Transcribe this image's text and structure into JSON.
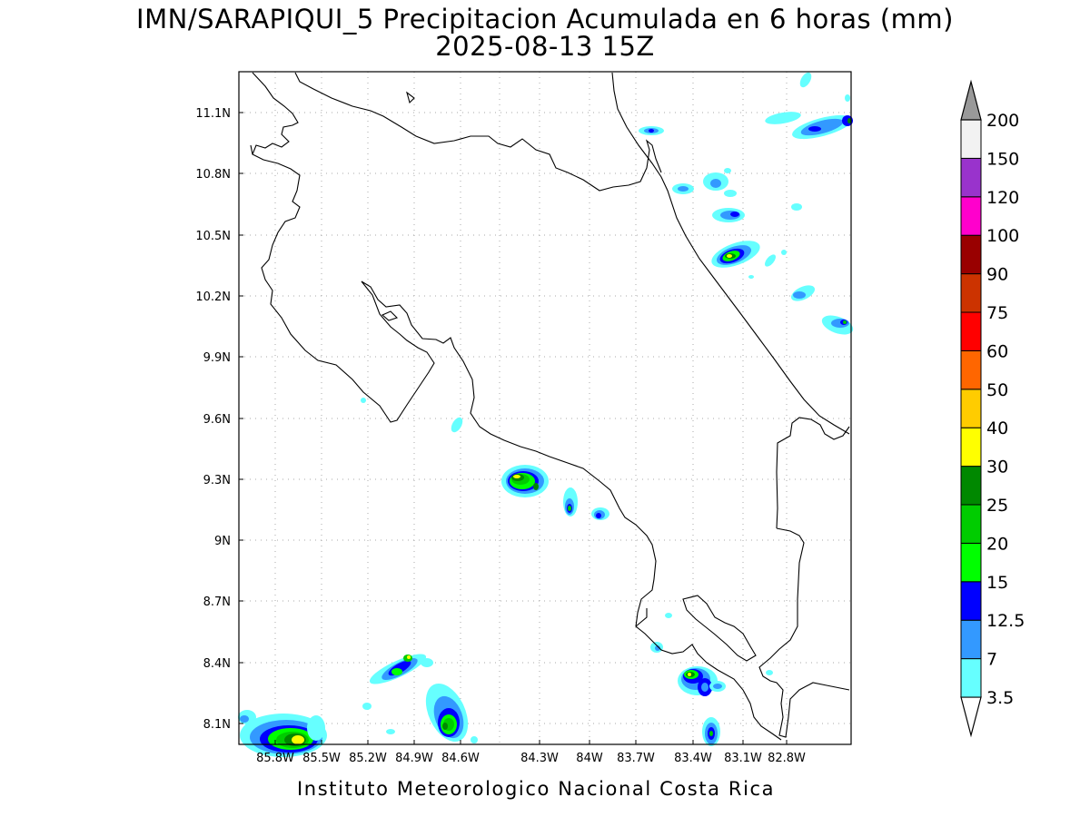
{
  "title": {
    "line1": "IMN/SARAPIQUI_5 Precipitacion Acumulada en 6 horas (mm)",
    "line2": "2025-08-13 15Z"
  },
  "footer": "Instituto Meteorologico Nacional Costa Rica",
  "map": {
    "lon_range": [
      -86.05,
      -82.65
    ],
    "lat_range": [
      8.0,
      11.3
    ],
    "x_ticks": [
      "85.8W",
      "85.5W",
      "85.2W",
      "84.9W",
      "84.6W",
      "84.3W",
      "84W",
      "83.7W",
      "83.4W",
      "83.1W",
      "82.8W"
    ],
    "y_ticks": [
      "11.1N",
      "10.8N",
      "10.5N",
      "10.2N",
      "9.9N",
      "9.6N",
      "9.3N",
      "9N",
      "8.7N",
      "8.4N",
      "8.1N"
    ],
    "grid": "dotted"
  },
  "colorbar": {
    "labels": [
      "3.5",
      "7",
      "12.5",
      "15",
      "20",
      "25",
      "30",
      "40",
      "50",
      "60",
      "75",
      "90",
      "100",
      "120",
      "150",
      "200"
    ],
    "colors": [
      "#66ffff",
      "#3399ff",
      "#0000ff",
      "#00ff00",
      "#00cc00",
      "#008800",
      "#ffff00",
      "#ffcc00",
      "#ff6600",
      "#ff0000",
      "#cc3300",
      "#990000",
      "#ff00cc",
      "#9933cc",
      "#f2f2f2",
      "#999999"
    ]
  }
}
